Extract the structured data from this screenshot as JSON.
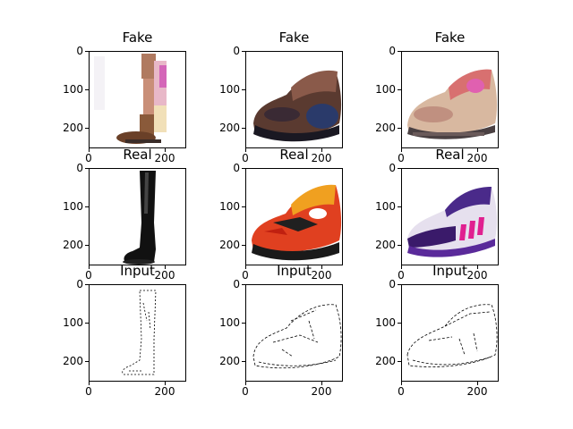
{
  "grid": {
    "rows": [
      {
        "panels": [
          {
            "title": "Fake",
            "kind": "fake-boot"
          },
          {
            "title": "Fake",
            "kind": "fake-sneaker-dark"
          },
          {
            "title": "Fake",
            "kind": "fake-sneaker-light"
          }
        ]
      },
      {
        "panels": [
          {
            "title": "Real",
            "kind": "real-boot"
          },
          {
            "title": "Real",
            "kind": "real-sneaker-red"
          },
          {
            "title": "Real",
            "kind": "real-cleat-purple"
          }
        ]
      },
      {
        "panels": [
          {
            "title": "Input",
            "kind": "edge-boot"
          },
          {
            "title": "Input",
            "kind": "edge-sneaker"
          },
          {
            "title": "Input",
            "kind": "edge-cleat"
          }
        ]
      }
    ]
  },
  "axes": {
    "y_ticks": [
      "0",
      "100",
      "200"
    ],
    "x_ticks": [
      "0",
      "200"
    ]
  },
  "colors": {
    "axis": "#000000",
    "background": "#ffffff"
  }
}
